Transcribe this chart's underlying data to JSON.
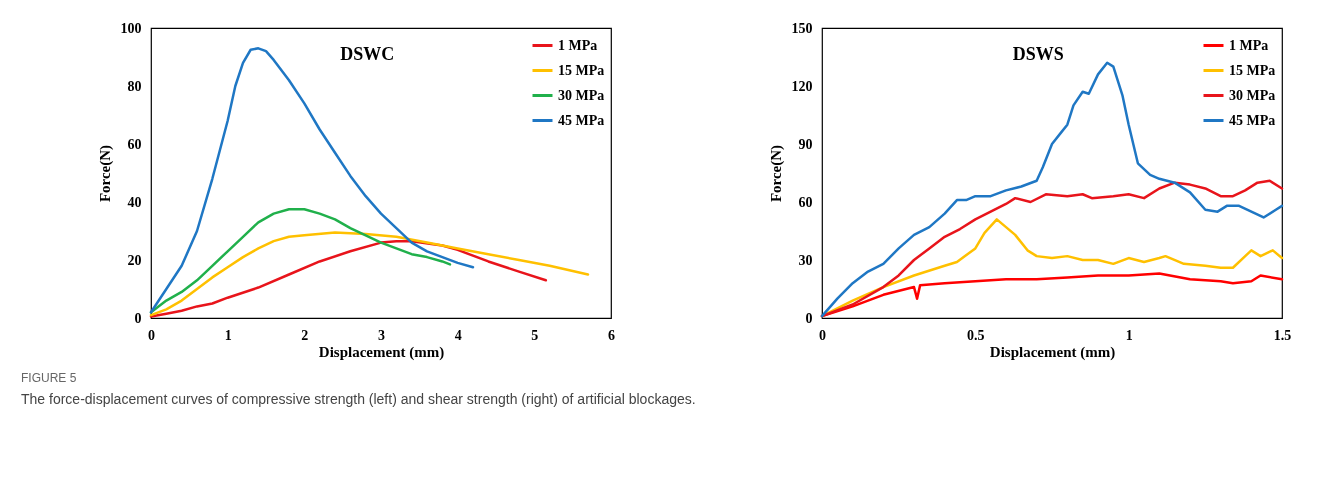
{
  "chart_data": [
    {
      "type": "line",
      "title": "DSWC",
      "xlabel": "Displacement (mm)",
      "ylabel": "Force(N)",
      "xlim": [
        0,
        6
      ],
      "ylim": [
        0,
        100
      ],
      "xticks": [
        0,
        1,
        2,
        3,
        4,
        5,
        6
      ],
      "yticks": [
        0,
        20,
        40,
        60,
        80,
        100
      ],
      "grid": false,
      "legend": "top right",
      "marker": "none",
      "line_style": "solid",
      "annotations": [
        "FIGURE 5",
        "The force-displacement curves of compressive strength (left) and shear strength (right) of artificial blockages."
      ],
      "series": [
        {
          "name": "1 MPa",
          "color": "#e8141b",
          "x": [
            0,
            0.2,
            0.4,
            0.6,
            0.8,
            1.0,
            1.4,
            1.8,
            2.2,
            2.6,
            3.0,
            3.2,
            3.4,
            3.8,
            4.0,
            4.4,
            4.8,
            5.15
          ],
          "values": [
            0.5,
            1.5,
            2.5,
            4,
            5,
            7,
            10.5,
            15,
            19.5,
            23,
            26,
            26.5,
            26.5,
            25,
            23.5,
            19.5,
            16,
            13
          ]
        },
        {
          "name": "15 MPa",
          "color": "#ffc000",
          "x": [
            0,
            0.2,
            0.4,
            0.6,
            0.8,
            1.0,
            1.2,
            1.4,
            1.6,
            1.8,
            2.0,
            2.4,
            2.8,
            3.2,
            3.6,
            4.0,
            4.4,
            4.8,
            5.2,
            5.7
          ],
          "values": [
            1,
            3,
            6,
            10,
            14,
            17.5,
            21,
            24,
            26.5,
            28,
            28.5,
            29.5,
            29,
            28,
            26,
            24,
            22,
            20,
            18,
            15
          ]
        },
        {
          "name": "30 MPa",
          "color": "#20b04b",
          "x": [
            0,
            0.2,
            0.4,
            0.6,
            0.8,
            1.0,
            1.2,
            1.4,
            1.6,
            1.8,
            2.0,
            2.2,
            2.4,
            2.6,
            2.8,
            3.0,
            3.2,
            3.4,
            3.6,
            3.8,
            3.9
          ],
          "values": [
            2,
            6,
            9,
            13,
            18,
            23,
            28,
            33,
            36,
            37.5,
            37.5,
            36,
            34,
            31,
            28.5,
            26,
            24,
            22,
            21,
            19.5,
            18.5
          ]
        },
        {
          "name": "45 MPa",
          "color": "#1f77c4",
          "x": [
            0,
            0.2,
            0.4,
            0.6,
            0.8,
            1.0,
            1.1,
            1.2,
            1.3,
            1.4,
            1.5,
            1.6,
            1.8,
            2.0,
            2.2,
            2.4,
            2.6,
            2.8,
            3.0,
            3.2,
            3.4,
            3.6,
            3.8,
            4.0,
            4.2
          ],
          "values": [
            2,
            10,
            18,
            30,
            48,
            68,
            80,
            88,
            92.5,
            93,
            92,
            89,
            82,
            74,
            65,
            57,
            49,
            42,
            36,
            31,
            26,
            23,
            21,
            19,
            17.5
          ]
        }
      ]
    },
    {
      "type": "line",
      "title": "DSWS",
      "xlabel": "Displacement (mm)",
      "ylabel": "Force(N)",
      "xlim": [
        0,
        1.5
      ],
      "ylim": [
        0,
        150
      ],
      "xticks": [
        0,
        0.5,
        1,
        1.5
      ],
      "yticks": [
        0,
        30,
        60,
        90,
        120,
        150
      ],
      "grid": false,
      "legend": "top right",
      "marker": "none",
      "line_style": "solid",
      "series": [
        {
          "name": "1 MPa",
          "color": "#ff0000",
          "x": [
            0,
            0.1,
            0.2,
            0.3,
            0.31,
            0.32,
            0.4,
            0.5,
            0.6,
            0.7,
            0.8,
            0.9,
            1.0,
            1.1,
            1.2,
            1.3,
            1.34,
            1.4,
            1.43,
            1.5
          ],
          "values": [
            1,
            6,
            12,
            16,
            10,
            17,
            18,
            19,
            20,
            20,
            21,
            22,
            22,
            23,
            20,
            19,
            18,
            19,
            22,
            20
          ]
        },
        {
          "name": "15 MPa",
          "color": "#ffc000",
          "x": [
            0,
            0.1,
            0.2,
            0.3,
            0.4,
            0.44,
            0.5,
            0.53,
            0.57,
            0.6,
            0.63,
            0.67,
            0.7,
            0.75,
            0.8,
            0.85,
            0.9,
            0.95,
            1.0,
            1.05,
            1.1,
            1.12,
            1.18,
            1.25,
            1.3,
            1.34,
            1.38,
            1.4,
            1.43,
            1.47,
            1.5
          ],
          "values": [
            1,
            9,
            16,
            22,
            27,
            29,
            36,
            44,
            51,
            47,
            43,
            35,
            32,
            31,
            32,
            30,
            30,
            28,
            31,
            29,
            31,
            32,
            28,
            27,
            26,
            26,
            32,
            35,
            32,
            35,
            31
          ]
        },
        {
          "name": "30 MPa",
          "color": "#e8141b",
          "x": [
            0,
            0.1,
            0.2,
            0.25,
            0.3,
            0.35,
            0.4,
            0.45,
            0.5,
            0.55,
            0.6,
            0.63,
            0.68,
            0.73,
            0.8,
            0.85,
            0.88,
            0.95,
            1.0,
            1.05,
            1.1,
            1.15,
            1.2,
            1.25,
            1.3,
            1.34,
            1.38,
            1.42,
            1.46,
            1.5
          ],
          "values": [
            1,
            7,
            16,
            22,
            30,
            36,
            42,
            46,
            51,
            55,
            59,
            62,
            60,
            64,
            63,
            64,
            62,
            63,
            64,
            62,
            67,
            70,
            69,
            67,
            63,
            63,
            66,
            70,
            71,
            67
          ]
        },
        {
          "name": "45 MPa",
          "color": "#1f77c4",
          "x": [
            0,
            0.05,
            0.1,
            0.15,
            0.2,
            0.25,
            0.3,
            0.35,
            0.4,
            0.44,
            0.47,
            0.5,
            0.55,
            0.6,
            0.65,
            0.7,
            0.72,
            0.75,
            0.78,
            0.8,
            0.82,
            0.85,
            0.87,
            0.9,
            0.93,
            0.95,
            0.98,
            1.0,
            1.03,
            1.07,
            1.1,
            1.15,
            1.2,
            1.25,
            1.29,
            1.32,
            1.36,
            1.4,
            1.44,
            1.48,
            1.5
          ],
          "values": [
            1,
            10,
            18,
            24,
            28,
            36,
            43,
            47,
            54,
            61,
            61,
            63,
            63,
            66,
            68,
            71,
            78,
            90,
            96,
            100,
            110,
            117,
            116,
            126,
            132,
            130,
            115,
            100,
            80,
            74,
            72,
            70,
            65,
            56,
            55,
            58,
            58,
            55,
            52,
            56,
            58
          ]
        }
      ]
    }
  ]
}
